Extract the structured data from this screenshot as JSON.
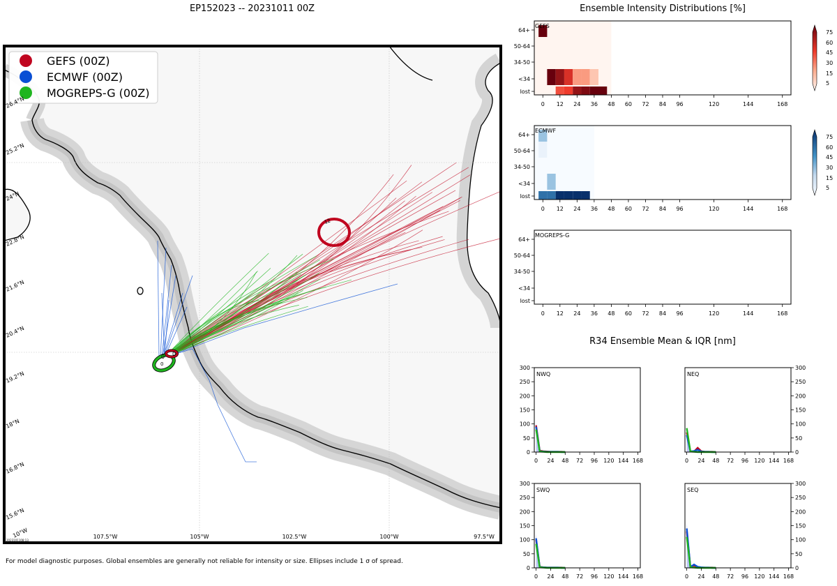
{
  "map": {
    "title": "EP152023 -- 20231011 00Z",
    "legend": [
      {
        "label": "GEFS (00Z)",
        "color": "#c0051f"
      },
      {
        "label": "ECMWF (00Z)",
        "color": "#0a4fd4"
      },
      {
        "label": "MOGREPS-G (00Z)",
        "color": "#1fb51f"
      }
    ],
    "lon_labels": [
      "107.5°W",
      "105°W",
      "102.5°W",
      "100°W",
      "97.5°W"
    ],
    "lat_labels": [
      "26.4°N",
      "25.2°N",
      "24°N",
      "22.8°N",
      "21.6°N",
      "20.4°N",
      "19.2°N",
      "18°N",
      "16.8°N",
      "15.6°N"
    ],
    "corner_label": "10°W",
    "stamp": "2023101108:13",
    "ellipse_labels": {
      "gefs_0": "0",
      "ecmwf_0": "0",
      "mogreps_0": "0",
      "gefs_12": "12"
    },
    "footer": "For model diagnostic purposes. Global ensembles are generally not reliable for intensity or size. Ellipses include 1 σ of spread."
  },
  "intensity": {
    "title": "Ensemble Intensity Distributions [%]",
    "rows": [
      "64+",
      "50-64",
      "34-50",
      "<34",
      "lost"
    ],
    "x_ticks": [
      0,
      12,
      24,
      36,
      48,
      60,
      72,
      84,
      96,
      120,
      144,
      168
    ],
    "colorbar_ticks": [
      5,
      15,
      30,
      45,
      60,
      75
    ],
    "panels": [
      {
        "name": "GEFS",
        "cmap": "reds"
      },
      {
        "name": "ECMWF",
        "cmap": "blues"
      },
      {
        "name": "MOGREPS-G",
        "cmap": "none"
      }
    ]
  },
  "chart_data": [
    {
      "type": "heatmap",
      "title": "GEFS",
      "x": [
        0,
        6,
        12,
        18,
        24,
        30,
        36,
        42
      ],
      "x_range": [
        -6,
        48
      ],
      "rows": [
        "64+",
        "50-64",
        "34-50",
        "<34",
        "lost"
      ],
      "values": [
        [
          90,
          0,
          0,
          0,
          0,
          0,
          0,
          0
        ],
        [
          0,
          0,
          0,
          0,
          0,
          0,
          0,
          0
        ],
        [
          0,
          0,
          0,
          0,
          0,
          0,
          0,
          0
        ],
        [
          0,
          90,
          80,
          65,
          35,
          35,
          20,
          0
        ],
        [
          0,
          0,
          55,
          60,
          80,
          85,
          90,
          90
        ]
      ]
    },
    {
      "type": "heatmap",
      "title": "ECMWF",
      "x": [
        0,
        6,
        12,
        18,
        24,
        30
      ],
      "x_range": [
        -6,
        36
      ],
      "rows": [
        "64+",
        "50-64",
        "34-50",
        "<34",
        "lost"
      ],
      "values": [
        [
          40,
          0,
          0,
          0,
          0,
          0
        ],
        [
          8,
          0,
          0,
          0,
          0,
          0
        ],
        [
          0,
          0,
          0,
          0,
          0,
          0
        ],
        [
          0,
          40,
          0,
          0,
          0,
          0
        ],
        [
          70,
          70,
          90,
          90,
          90,
          90
        ]
      ]
    },
    {
      "type": "heatmap",
      "title": "MOGREPS-G",
      "x": [],
      "rows": [
        "64+",
        "50-64",
        "34-50",
        "<34",
        "lost"
      ],
      "values": []
    },
    {
      "type": "line",
      "title": "R34 Ensemble Mean & IQR [nm]",
      "panels": [
        "NWQ",
        "NEQ",
        "SWQ",
        "SEQ"
      ],
      "x": [
        0,
        6,
        12,
        18,
        24,
        30,
        36,
        42,
        48
      ],
      "x_ticks": [
        0,
        24,
        48,
        72,
        96,
        120,
        144,
        168
      ],
      "y_ticks": [
        0,
        50,
        100,
        150,
        200,
        250,
        300
      ],
      "ylim": [
        0,
        300
      ],
      "xlim": [
        -3,
        172
      ],
      "series": {
        "NWQ": [
          {
            "name": "GEFS",
            "values": [
              95,
              5,
              3,
              2,
              1,
              1,
              1,
              1,
              0
            ]
          },
          {
            "name": "ECMWF",
            "values": [
              90,
              3,
              2,
              1,
              1,
              1,
              1,
              0,
              0
            ]
          },
          {
            "name": "MOGREPS-G",
            "values": [
              80,
              2,
              1,
              0,
              0,
              0,
              0,
              0,
              0
            ]
          }
        ],
        "NEQ": [
          {
            "name": "GEFS",
            "values": [
              70,
              3,
              2,
              15,
              3,
              1,
              1,
              1,
              0
            ]
          },
          {
            "name": "ECMWF",
            "values": [
              60,
              2,
              4,
              8,
              2,
              1,
              1,
              0,
              0
            ]
          },
          {
            "name": "MOGREPS-G",
            "values": [
              85,
              2,
              1,
              0,
              0,
              0,
              0,
              0,
              0
            ]
          }
        ],
        "SWQ": [
          {
            "name": "GEFS",
            "values": [
              100,
              4,
              2,
              1,
              1,
              1,
              1,
              1,
              0
            ]
          },
          {
            "name": "ECMWF",
            "values": [
              105,
              3,
              2,
              1,
              1,
              1,
              1,
              0,
              0
            ]
          },
          {
            "name": "MOGREPS-G",
            "values": [
              85,
              2,
              1,
              0,
              0,
              0,
              0,
              0,
              0
            ]
          }
        ],
        "SEQ": [
          {
            "name": "GEFS",
            "values": [
              130,
              3,
              8,
              3,
              1,
              1,
              1,
              1,
              0
            ]
          },
          {
            "name": "ECMWF",
            "values": [
              140,
              3,
              12,
              4,
              2,
              1,
              1,
              0,
              0
            ]
          },
          {
            "name": "MOGREPS-G",
            "values": [
              110,
              2,
              1,
              0,
              0,
              0,
              0,
              0,
              0
            ]
          }
        ]
      },
      "iqr_color": "#a9b8f2",
      "series_colors": {
        "GEFS": "#c0051f",
        "ECMWF": "#0a4fd4",
        "MOGREPS-G": "#1fb51f"
      }
    }
  ]
}
